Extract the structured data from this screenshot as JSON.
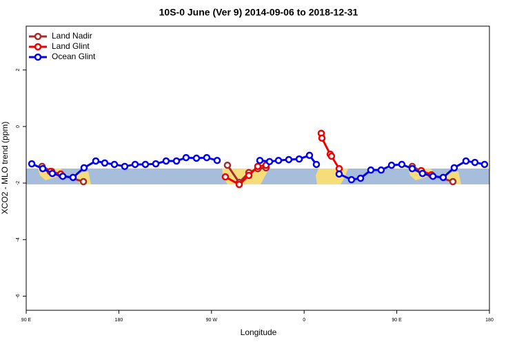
{
  "chart_data": {
    "type": "line",
    "title": "10S-0 June (Ver 9)   2014-09-06 to 2018-12-31",
    "xlabel": "Longitude",
    "ylabel": "XCO2 - MLO trend (ppm)",
    "xlim": [
      90,
      540
    ],
    "xticks": [
      {
        "value": 90,
        "label": "90 E"
      },
      180,
      {
        "value": 270,
        "label": "90 W"
      },
      {
        "value": 360,
        "label": "0"
      },
      {
        "value": 450,
        "label": "90 E"
      },
      {
        "value": 540,
        "label": "180"
      }
    ],
    "ylim": [
      -6.5,
      3.55
    ],
    "yticks": [
      -6,
      -4,
      -2,
      0,
      2
    ],
    "legend": "top-left",
    "series": [
      {
        "name": "Land Nadir",
        "color": "#a52a2a",
        "x": [
          105.4,
          114.8,
          124.1,
          145.6,
          200,
          285.5,
          296.9,
          306.3,
          315,
          323,
          400,
          465,
          474.3,
          483.7,
          504.5
        ],
        "values": [
          -1.41,
          -1.59,
          -1.71,
          -1.95,
          null,
          -1.37,
          -1.98,
          -1.63,
          -1.49,
          -1.46,
          null,
          -1.41,
          -1.59,
          -1.71,
          -1.95
        ]
      },
      {
        "name": "Land Glint",
        "color": "#ee0000",
        "x": [
          113.4,
          123.5,
          200,
          283.5,
          296.9,
          306.3,
          315,
          323,
          350,
          376.6,
          377.3,
          385.3,
          386.6,
          394,
          430,
          473.7,
          483.7
        ],
        "values": [
          -1.59,
          -1.68,
          null,
          -1.78,
          -2.05,
          -1.73,
          -1.41,
          -1.37,
          null,
          -0.24,
          -0.41,
          -0.98,
          -1.05,
          -1.49,
          null,
          -1.56,
          -1.71
        ]
      },
      {
        "name": "Ocean Glint",
        "color": "#0000ee",
        "x": [
          95.4,
          106.1,
          115.4,
          125.5,
          135.5,
          146.2,
          157.6,
          166.3,
          175.7,
          185.7,
          195.8,
          205.8,
          215.9,
          225.9,
          236,
          245.3,
          255.4,
          265.4,
          275.5,
          285,
          317,
          326.4,
          335.1,
          345.1,
          355.2,
          365.2,
          371.9,
          380,
          394,
          406,
          414.8,
          424.8,
          434.8,
          444.9,
          454.9,
          465,
          475,
          485.1,
          495.1,
          505.8,
          517.2,
          525.9,
          535.3
        ],
        "values": [
          -1.32,
          -1.49,
          -1.66,
          -1.76,
          -1.8,
          -1.46,
          -1.22,
          -1.29,
          -1.34,
          -1.41,
          -1.34,
          -1.34,
          -1.32,
          -1.22,
          -1.22,
          -1.1,
          -1.12,
          -1.1,
          -1.2,
          null,
          -1.2,
          -1.24,
          -1.2,
          -1.17,
          -1.15,
          -1.02,
          -1.34,
          null,
          -1.68,
          -1.88,
          -1.83,
          -1.54,
          -1.54,
          -1.37,
          -1.34,
          -1.49,
          -1.66,
          -1.76,
          -1.8,
          -1.46,
          -1.22,
          -1.27,
          -1.34
        ]
      }
    ]
  }
}
